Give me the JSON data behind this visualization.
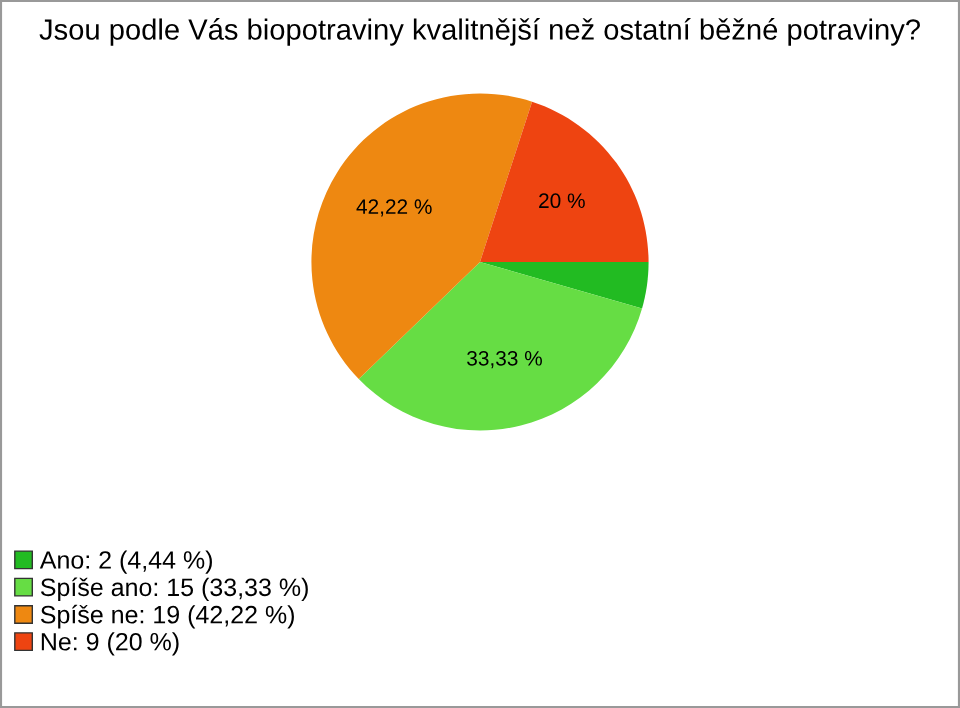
{
  "chart_data": {
    "type": "pie",
    "title": "Jsou podle Vás biopotraviny kvalitnější než ostatní běžné potraviny?",
    "categories": [
      "Ano: 2 (4,44 %)",
      "Spíše ano: 15 (33,33 %)",
      "Spíše ne: 19 (42,22 %)",
      "Ne: 9 (20 %)"
    ],
    "values": [
      4.44,
      33.33,
      42.22,
      20
    ],
    "colors": [
      "#22bb22",
      "#66dd44",
      "#ee8811",
      "#ee4411"
    ],
    "value_labels": [
      null,
      "33,33 %",
      "42,22 %",
      "20 %"
    ],
    "legend": "bottom left"
  }
}
